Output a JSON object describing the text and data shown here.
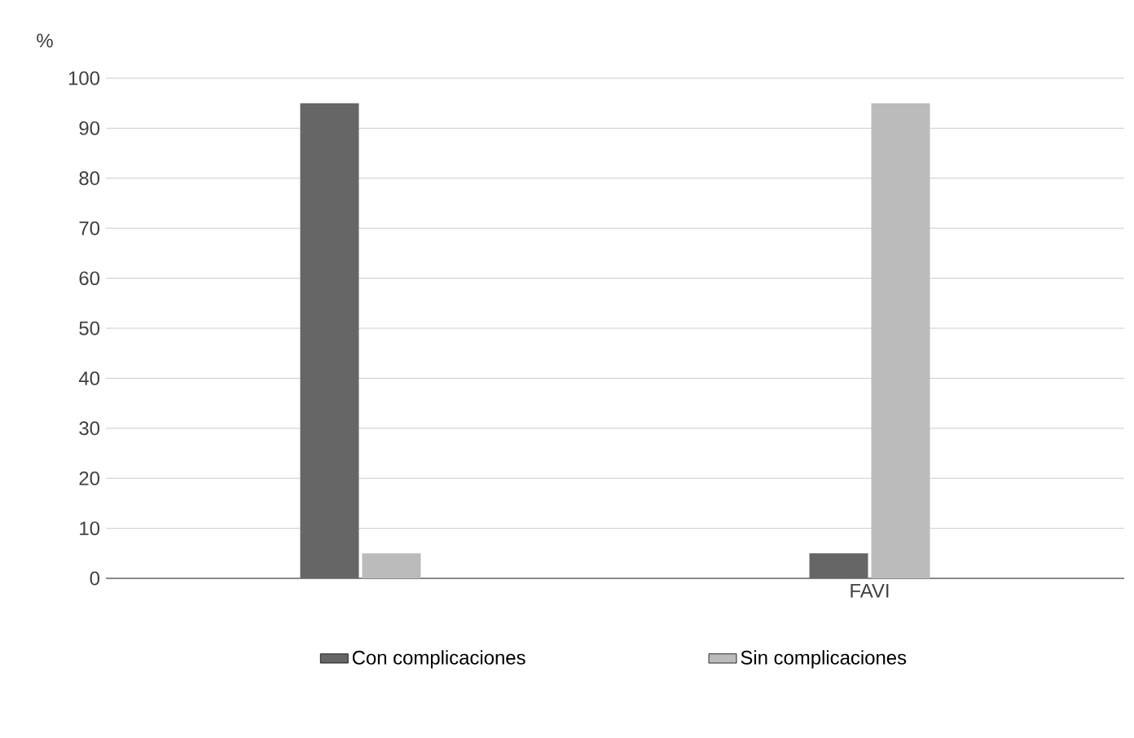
{
  "chart_data": {
    "type": "bar",
    "ylabel": "%",
    "categories": [
      null,
      "FAVI"
    ],
    "series": [
      {
        "name": "Con complicaciones",
        "color": "#666666",
        "values": [
          95,
          5
        ]
      },
      {
        "name": "Sin complicaciones",
        "color": "#bbbbbb",
        "values": [
          5,
          95
        ]
      }
    ],
    "ylim": [
      0,
      100
    ],
    "yticks": [
      0,
      10,
      20,
      30,
      40,
      50,
      60,
      70,
      80,
      90,
      100
    ],
    "grid": "y",
    "legend": "bottom"
  }
}
